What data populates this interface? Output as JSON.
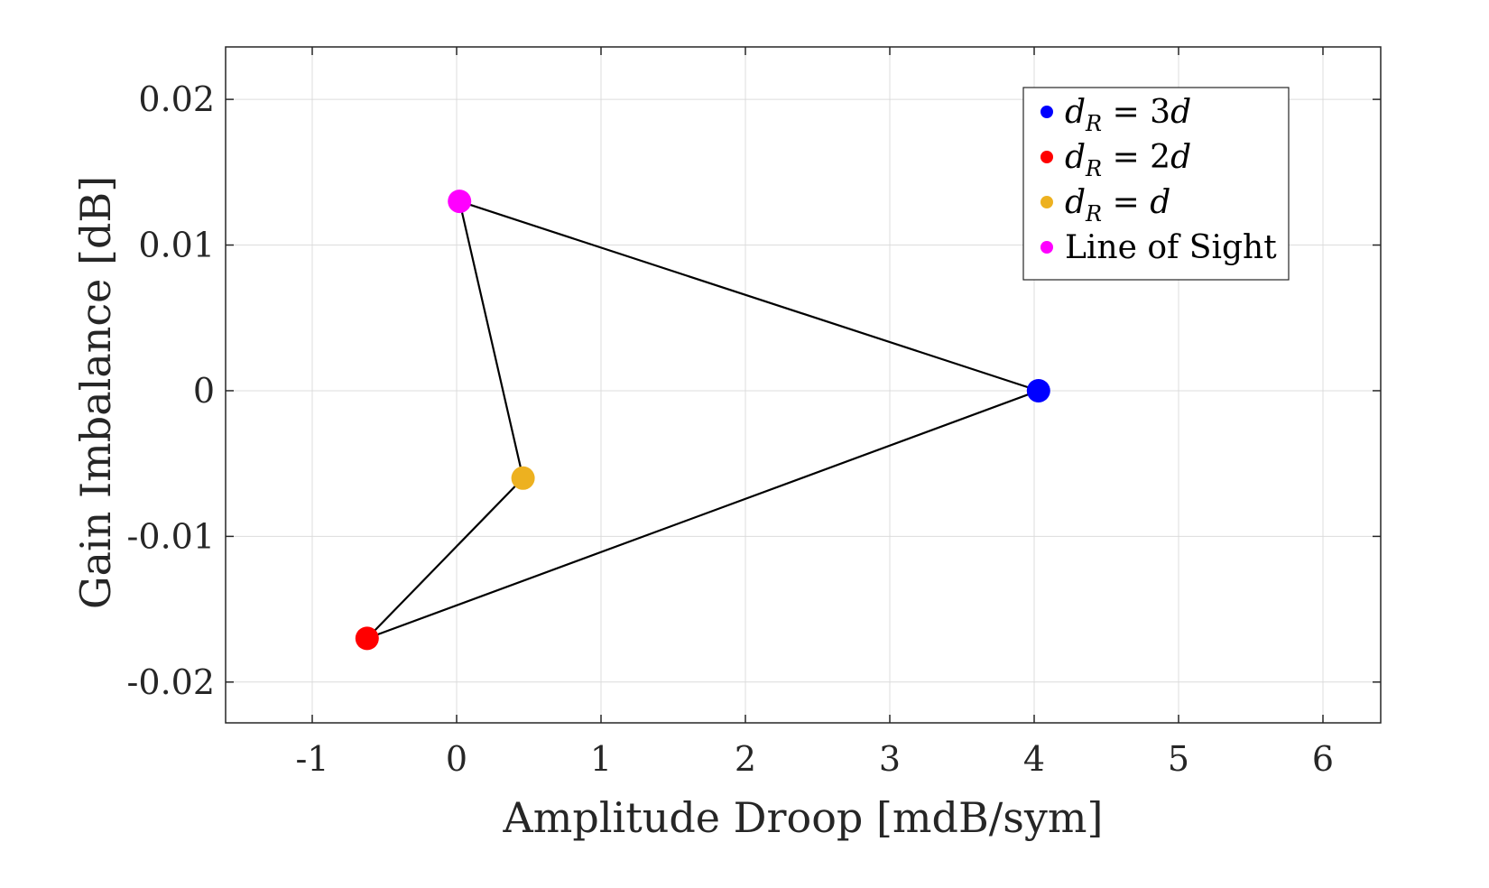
{
  "chart_data": {
    "type": "scatter",
    "title": "",
    "xlabel": "Amplitude Droop [mdB/sym]",
    "ylabel": "Gain Imbalance [dB]",
    "xlim": [
      -1.6,
      6.4
    ],
    "ylim": [
      -0.0228,
      0.0236
    ],
    "xticks": [
      -1,
      0,
      1,
      2,
      3,
      4,
      5,
      6
    ],
    "xtick_labels": [
      "-1",
      "0",
      "1",
      "2",
      "3",
      "4",
      "5",
      "6"
    ],
    "yticks": [
      0.02,
      0.01,
      0,
      -0.01,
      -0.02
    ],
    "ytick_labels": [
      "0.02",
      "0.01",
      "0",
      "-0.01",
      "-0.02"
    ],
    "grid": true,
    "legend_position": "top-right",
    "series": [
      {
        "name": "d_R = 3d",
        "legend": {
          "main": "d",
          "sub": "R",
          "rest": " = 3",
          "tail": "d"
        },
        "color": "#0000ff",
        "x": [
          4.03
        ],
        "y": [
          0.0
        ]
      },
      {
        "name": "d_R = 2d",
        "legend": {
          "main": "d",
          "sub": "R",
          "rest": " = 2",
          "tail": "d"
        },
        "color": "#ff0000",
        "x": [
          -0.62
        ],
        "y": [
          -0.017
        ]
      },
      {
        "name": "d_R = d",
        "legend": {
          "main": "d",
          "sub": "R",
          "rest": " = ",
          "tail": "d"
        },
        "color": "#edb120",
        "x": [
          0.46
        ],
        "y": [
          -0.006
        ]
      },
      {
        "name": "Line of Sight",
        "legend": {
          "plain": "Line of Sight"
        },
        "color": "#ff00ff",
        "x": [
          0.02
        ],
        "y": [
          0.013
        ]
      }
    ],
    "connecting_line": {
      "color": "#000000",
      "x": [
        0.02,
        4.03,
        -0.62,
        0.46,
        0.02
      ],
      "y": [
        0.013,
        0.0,
        -0.017,
        -0.006,
        0.013
      ]
    }
  }
}
